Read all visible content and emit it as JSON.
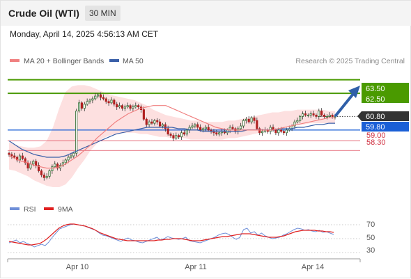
{
  "header": {
    "title": "Crude Oil (WTI)",
    "timeframe": "30 MIN"
  },
  "timestamp": "Monday, April 14, 2025 4:56:13 AM CET",
  "legend": {
    "ma20_label": "MA 20 + Bollinger Bands",
    "ma50_label": "MA 50",
    "credit": "Research © 2025 Trading Central",
    "rsi_label": "RSI",
    "ma9_label": "9MA"
  },
  "colors": {
    "ma20": "#f08080",
    "ma50": "#3a5fa8",
    "band_fill": "#fde0e0",
    "resistance": "#4a9a00",
    "support": "#e05060",
    "pivot": "#1a5fd6",
    "current": "#333333",
    "candle_up": "#2f6b2f",
    "candle_down": "#b02020",
    "rsi": "#6f8fd8",
    "ma9": "#e02020"
  },
  "levels": {
    "r2": "63.50",
    "r1": "62.50",
    "current": "60.80",
    "pivot": "59.80",
    "s1": "59.00",
    "s2": "58.30"
  },
  "rsi_ticks": [
    "70",
    "50",
    "30"
  ],
  "chart_data": [
    {
      "type": "candlestick",
      "title": "",
      "x_ticks": [
        "Apr 10",
        "Apr 11",
        "Apr 14"
      ],
      "ylim": [
        55.6,
        64.4
      ],
      "grid": false,
      "legend_position": "top-left",
      "horizontal_levels": [
        {
          "label": "63.50",
          "value": 63.5,
          "kind": "resistance"
        },
        {
          "label": "62.50",
          "value": 62.5,
          "kind": "resistance"
        },
        {
          "label": "60.80",
          "value": 60.8,
          "kind": "current"
        },
        {
          "label": "59.80",
          "value": 59.8,
          "kind": "pivot"
        },
        {
          "label": "59.00",
          "value": 59.0,
          "kind": "support"
        },
        {
          "label": "58.30",
          "value": 58.3,
          "kind": "support"
        }
      ],
      "close": [
        58.0,
        57.9,
        57.8,
        57.6,
        57.9,
        57.7,
        57.4,
        57.0,
        57.3,
        57.5,
        57.2,
        56.8,
        56.5,
        56.3,
        56.4,
        56.8,
        57.1,
        57.3,
        57.0,
        57.2,
        57.4,
        57.6,
        57.8,
        57.9,
        58.1,
        61.2,
        61.8,
        61.4,
        61.7,
        61.9,
        62.0,
        62.1,
        62.3,
        62.4,
        62.2,
        62.1,
        61.9,
        61.8,
        62.0,
        61.7,
        61.5,
        61.6,
        61.4,
        61.5,
        61.6,
        61.4,
        61.5,
        61.6,
        61.5,
        61.3,
        60.6,
        60.2,
        60.4,
        60.3,
        60.5,
        60.4,
        60.1,
        60.2,
        59.9,
        59.5,
        59.4,
        59.2,
        59.4,
        59.3,
        59.6,
        59.5,
        59.8,
        60.0,
        60.1,
        60.2,
        60.0,
        59.8,
        59.9,
        60.0,
        59.8,
        59.7,
        59.6,
        59.5,
        59.6,
        59.7,
        59.6,
        59.8,
        60.0,
        59.9,
        59.7,
        59.9,
        60.1,
        60.5,
        60.6,
        60.4,
        60.7,
        60.5,
        59.9,
        59.6,
        59.7,
        59.8,
        59.7,
        60.0,
        59.8,
        59.6,
        59.8,
        59.7,
        59.6,
        59.8,
        59.9,
        60.1,
        60.4,
        60.5,
        60.8,
        61.0,
        60.9,
        60.9,
        61.0,
        60.9,
        60.8,
        61.2,
        60.9,
        60.8,
        60.8,
        60.9,
        60.8,
        60.8
      ],
      "ma20": [
        57.9,
        57.7,
        57.5,
        57.4,
        57.2,
        57.1,
        57.0,
        57.0,
        57.1,
        57.3,
        57.6,
        57.9,
        58.3,
        58.7,
        59.2,
        59.6,
        60.0,
        60.4,
        60.7,
        61.0,
        61.2,
        61.4,
        61.5,
        61.6,
        61.6,
        61.6,
        61.4,
        61.2,
        61.0,
        60.8,
        60.6,
        60.4,
        60.2,
        60.0,
        59.9,
        59.8,
        59.8,
        59.8,
        59.8,
        59.8,
        59.8,
        59.8,
        59.8,
        59.9,
        60.0,
        60.1,
        60.2,
        60.3,
        60.4,
        60.5,
        60.6,
        60.7,
        60.7
      ],
      "ma50": [
        59.0,
        58.7,
        58.4,
        58.2,
        58.0,
        57.9,
        57.8,
        57.8,
        57.8,
        57.9,
        58.1,
        58.3,
        58.5,
        58.7,
        58.9,
        59.1,
        59.3,
        59.5,
        59.6,
        59.7,
        59.8,
        59.9,
        60.0,
        60.0,
        60.0,
        60.0,
        60.0,
        59.9,
        59.9,
        59.8,
        59.8,
        59.7,
        59.7,
        59.7,
        59.7,
        59.7,
        59.7,
        59.7,
        59.8,
        59.8,
        59.8,
        59.8,
        59.8,
        59.9,
        59.9,
        59.9,
        60.0,
        60.0,
        60.1,
        60.2,
        60.2,
        60.3,
        60.3
      ],
      "band_upper": [
        58.9,
        58.7,
        58.6,
        58.5,
        58.5,
        58.6,
        59.0,
        60.0,
        61.4,
        62.6,
        63.0,
        63.1,
        63.1,
        63.0,
        62.8,
        62.6,
        62.4,
        62.3,
        62.2,
        62.1,
        62.0,
        61.8,
        61.6,
        61.3,
        61.1,
        60.9,
        60.8,
        60.7,
        60.6,
        60.5,
        60.5,
        60.4,
        60.4,
        60.4,
        60.4,
        60.5,
        60.5,
        60.6,
        60.7,
        60.8,
        60.9,
        61.0,
        61.1,
        61.1,
        61.2,
        61.2,
        61.3,
        61.3,
        61.3,
        61.3,
        61.3,
        61.2,
        61.2
      ],
      "band_lower": [
        56.9,
        56.8,
        56.6,
        56.4,
        56.1,
        55.9,
        55.7,
        55.6,
        55.6,
        55.8,
        56.3,
        57.0,
        57.6,
        58.3,
        58.8,
        59.2,
        59.4,
        59.5,
        59.6,
        59.6,
        59.6,
        59.5,
        59.5,
        59.4,
        59.3,
        59.3,
        59.2,
        59.2,
        59.2,
        59.1,
        59.1,
        59.1,
        59.1,
        59.1,
        59.1,
        59.2,
        59.2,
        59.3,
        59.4,
        59.5,
        59.6,
        59.7,
        59.8,
        59.9,
        60.0,
        60.1,
        60.2,
        60.2,
        60.3,
        60.3,
        60.3,
        60.3,
        60.3
      ]
    },
    {
      "type": "line",
      "title": "",
      "ylim": [
        20,
        80
      ],
      "y_ticks": [
        70,
        50,
        30
      ],
      "grid": true,
      "series": [
        {
          "name": "RSI",
          "values": [
            44,
            46,
            48,
            44,
            46,
            43,
            41,
            38,
            40,
            42,
            40,
            45,
            52,
            58,
            64,
            66,
            68,
            70,
            71,
            70,
            69,
            68,
            66,
            64,
            62,
            58,
            55,
            54,
            52,
            50,
            48,
            46,
            49,
            51,
            48,
            47,
            45,
            44,
            46,
            48,
            50,
            52,
            48,
            50,
            53,
            51,
            50,
            49,
            50,
            52,
            47,
            46,
            45,
            44,
            46,
            48,
            50,
            52,
            55,
            57,
            58,
            56,
            52,
            49,
            52,
            63,
            65,
            58,
            60,
            55,
            58,
            54,
            52,
            50,
            51,
            52,
            55,
            57,
            60,
            63,
            65,
            64,
            62,
            63,
            61,
            60,
            62,
            59,
            60,
            58,
            56
          ]
        },
        {
          "name": "9MA",
          "values": [
            46,
            45,
            44,
            43,
            42,
            41,
            41,
            42,
            43,
            46,
            50,
            55,
            60,
            65,
            68,
            70,
            71,
            71,
            70,
            69,
            68,
            66,
            64,
            61,
            58,
            56,
            54,
            52,
            50,
            49,
            48,
            47,
            47,
            47,
            47,
            47,
            47,
            47,
            47,
            48,
            48,
            49,
            49,
            50,
            50,
            50,
            49,
            48,
            47,
            47,
            47,
            48,
            49,
            50,
            51,
            52,
            53,
            53,
            54,
            55,
            56,
            57,
            57,
            57,
            56,
            55,
            54,
            53,
            52,
            52,
            52,
            53,
            54,
            56,
            58,
            60,
            61,
            62,
            62,
            62,
            62,
            61,
            61,
            60,
            60,
            59
          ]
        }
      ]
    }
  ]
}
